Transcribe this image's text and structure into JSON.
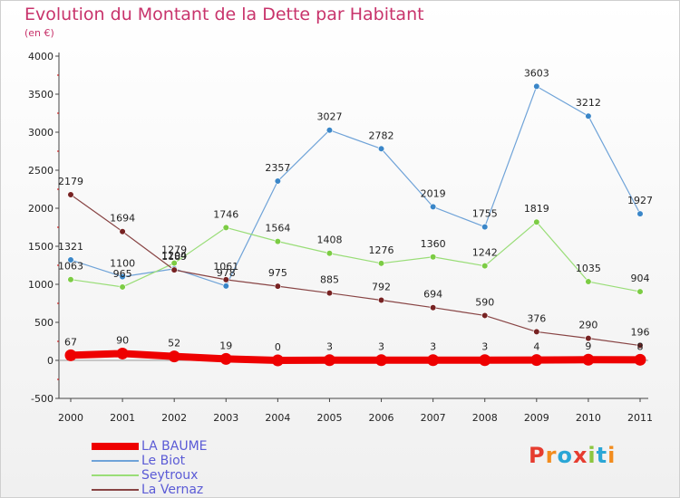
{
  "header": {
    "title": "Evolution du Montant de la Dette par Habitant",
    "subtitle": "(en €)"
  },
  "logo": {
    "text": "Proxiti",
    "colors": [
      "#e63c2f",
      "#f28c1e",
      "#2aa6d6",
      "#e63c2f",
      "#8cc63f",
      "#2aa6d6",
      "#f28c1e"
    ]
  },
  "chart_data": {
    "type": "line",
    "title": "Evolution du Montant de la Dette par Habitant",
    "subtitle": "(en €)",
    "x": [
      "2000",
      "2001",
      "2002",
      "2003",
      "2004",
      "2005",
      "2006",
      "2007",
      "2008",
      "2009",
      "2010",
      "2011"
    ],
    "ylim": [
      -500,
      4000
    ],
    "yticks": [
      -500,
      0,
      500,
      1000,
      1500,
      2000,
      2500,
      3000,
      3500,
      4000
    ],
    "legend_position": "bottom-left",
    "series": [
      {
        "name": "LA BAUME",
        "color": "#ee0000",
        "point_color": "#ee0000",
        "values": [
          67,
          90,
          52,
          19,
          0,
          3,
          3,
          3,
          3,
          4,
          9,
          8
        ]
      },
      {
        "name": "Le Biot",
        "color": "#6fa3d8",
        "point_color": "#3a86c8",
        "values": [
          1321,
          1100,
          1204,
          978,
          2357,
          3027,
          2782,
          2019,
          1755,
          3603,
          3212,
          1927
        ]
      },
      {
        "name": "Seytroux",
        "color": "#99dd77",
        "point_color": "#7ccc44",
        "values": [
          1063,
          965,
          1279,
          1746,
          1564,
          1408,
          1276,
          1360,
          1242,
          1819,
          1035,
          904
        ]
      },
      {
        "name": "La Vernaz",
        "color": "#884444",
        "point_color": "#772222",
        "values": [
          2179,
          1694,
          1189,
          1061,
          975,
          885,
          792,
          694,
          590,
          376,
          290,
          196
        ]
      }
    ]
  }
}
